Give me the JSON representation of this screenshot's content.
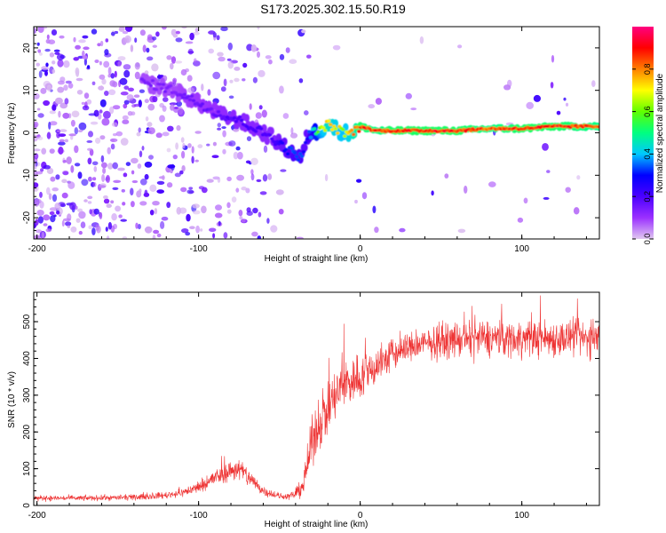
{
  "title": "S173.2025.302.15.50.R19",
  "chart_data": [
    {
      "type": "heatmap",
      "name": "spectrogram",
      "xlabel": "Height of straight line (km)",
      "ylabel": "Frequency (Hz)",
      "xlim": [
        -202,
        148
      ],
      "ylim": [
        -25,
        25
      ],
      "xticks": [
        -200,
        -100,
        0,
        100
      ],
      "xtick_labels": [
        "-200",
        "-100",
        "0",
        "100"
      ],
      "yticks": [
        -20,
        -10,
        0,
        10,
        20
      ],
      "ytick_labels": [
        "-20",
        "-10",
        "0",
        "10",
        "20"
      ],
      "colorbar": {
        "label": "Normalized spectral amplitude",
        "range": [
          0,
          1
        ],
        "ticks": [
          0.0,
          0.2,
          0.4,
          0.6,
          0.8
        ],
        "tick_labels": [
          "0.0",
          "0.2",
          "0.4",
          "0.6",
          "0.8"
        ],
        "colors": [
          "#e0c8f0",
          "#9b30ff",
          "#4b00ff",
          "#0000ff",
          "#00c8ff",
          "#00ff80",
          "#60ff00",
          "#ffff00",
          "#ff8000",
          "#ff0000",
          "#ff0080"
        ]
      },
      "ridge": {
        "x": [
          -135,
          -125,
          -115,
          -105,
          -95,
          -85,
          -75,
          -65,
          -55,
          -45,
          -40,
          -36,
          -33,
          -30,
          -25,
          -20,
          -15,
          -10,
          -5,
          0,
          10,
          20,
          40,
          60,
          80,
          100,
          120,
          148
        ],
        "y": [
          12,
          11,
          10,
          8,
          6,
          4,
          3,
          1,
          -1,
          -4,
          -5,
          -6,
          -1,
          0,
          0.5,
          2,
          1,
          0,
          0,
          1.5,
          0.5,
          0.5,
          0.5,
          0.5,
          1,
          1,
          1.5,
          1.5
        ],
        "amplitude": [
          0.15,
          0.15,
          0.15,
          0.17,
          0.18,
          0.2,
          0.22,
          0.22,
          0.22,
          0.32,
          0.38,
          0.35,
          0.3,
          0.45,
          0.65,
          0.82,
          0.75,
          0.72,
          0.8,
          0.95,
          0.9,
          0.95,
          0.95,
          0.95,
          0.9,
          0.95,
          0.95,
          0.9
        ]
      }
    },
    {
      "type": "line",
      "name": "snr",
      "xlabel": "Height of straight line (km)",
      "ylabel": "SNR (10 * v/v)",
      "xlim": [
        -202,
        148
      ],
      "ylim": [
        0,
        580
      ],
      "xticks": [
        -200,
        -100,
        0,
        100
      ],
      "xtick_labels": [
        "-200",
        "-100",
        "0",
        "100"
      ],
      "yticks": [
        0,
        100,
        200,
        300,
        400,
        500
      ],
      "ytick_labels": [
        "0",
        "100",
        "200",
        "300",
        "400",
        "500"
      ],
      "color": "#ee3333",
      "envelope": {
        "x": [
          -202,
          -170,
          -140,
          -120,
          -110,
          -100,
          -90,
          -80,
          -75,
          -70,
          -60,
          -50,
          -45,
          -40,
          -35,
          -30,
          -25,
          -20,
          -15,
          -10,
          0,
          10,
          20,
          30,
          40,
          60,
          80,
          100,
          120,
          148
        ],
        "mean": [
          20,
          20,
          22,
          28,
          35,
          50,
          75,
          95,
          100,
          80,
          40,
          25,
          25,
          30,
          60,
          170,
          230,
          260,
          300,
          330,
          350,
          380,
          410,
          430,
          440,
          450,
          455,
          455,
          455,
          455
        ],
        "spread": [
          8,
          8,
          8,
          10,
          12,
          18,
          25,
          30,
          35,
          30,
          15,
          10,
          10,
          12,
          40,
          70,
          80,
          80,
          80,
          80,
          70,
          60,
          50,
          45,
          45,
          50,
          55,
          55,
          55,
          55
        ]
      }
    }
  ]
}
